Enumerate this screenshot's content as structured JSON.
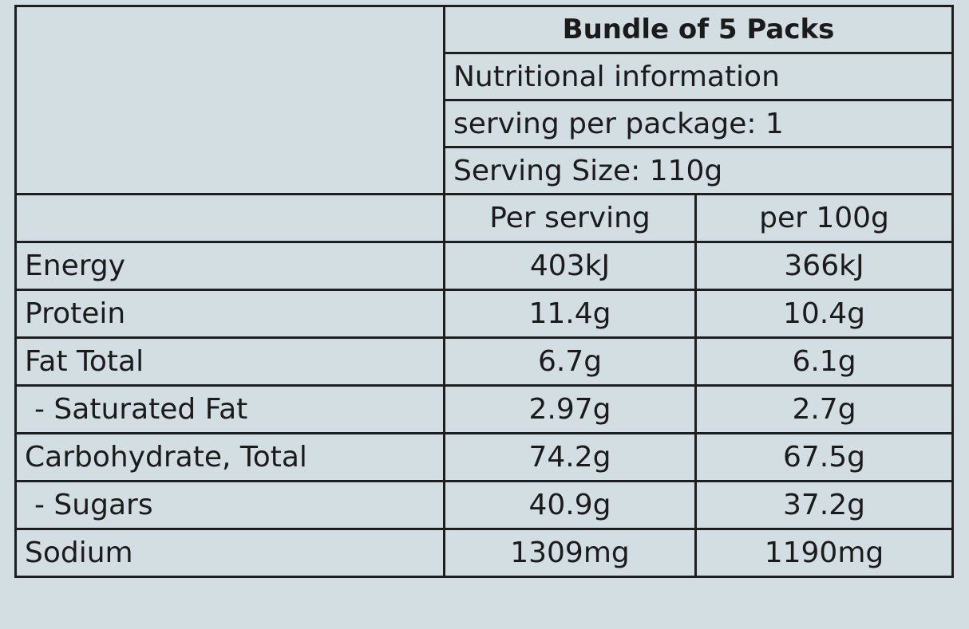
{
  "header": {
    "title": "Bundle of 5 Packs",
    "lines": [
      "Nutritional information",
      "serving per package: 1",
      "Serving Size: 110g"
    ]
  },
  "table": {
    "columns": [
      "Per serving",
      "per 100g"
    ],
    "rows": [
      [
        "Energy",
        "403kJ",
        "366kJ"
      ],
      [
        "Protein",
        "11.4g",
        "10.4g"
      ],
      [
        "Fat Total",
        "6.7g",
        "6.1g"
      ],
      [
        "- Saturated Fat",
        "2.97g",
        "2.7g"
      ],
      [
        "Carbohydrate, Total",
        "74.2g",
        "67.5g"
      ],
      [
        "- Sugars",
        "40.9g",
        "37.2g"
      ],
      [
        "Sodium",
        "1309mg",
        "1190mg"
      ]
    ]
  }
}
